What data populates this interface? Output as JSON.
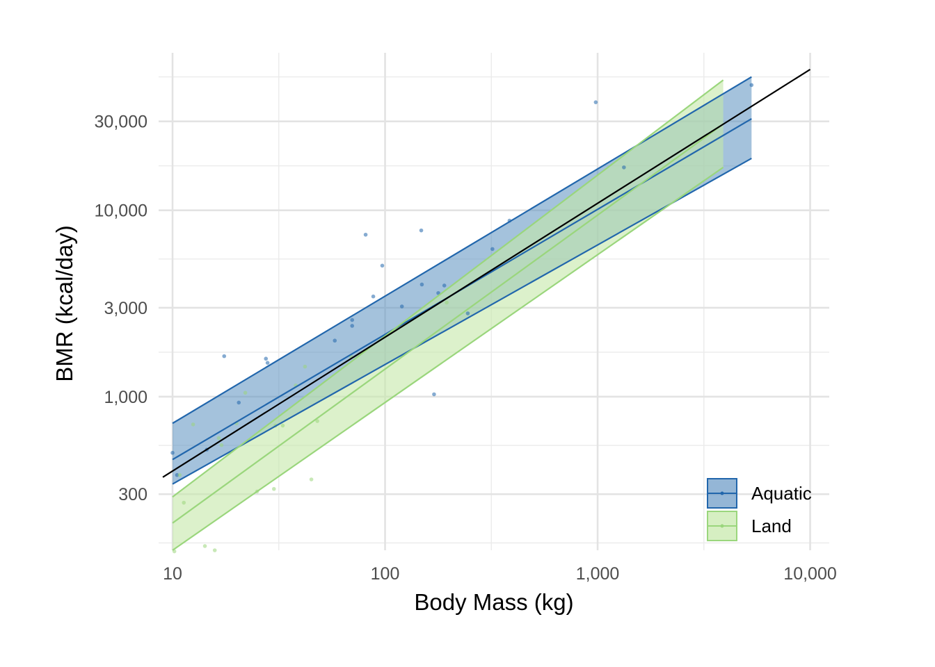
{
  "chart_data": {
    "type": "scatter",
    "xlabel": "Body Mass (kg)",
    "ylabel": "BMR (kcal/day)",
    "x_scale": "log10",
    "y_scale": "log10",
    "xlim": [
      8.6,
      12300
    ],
    "ylim": [
      150,
      70000
    ],
    "x_ticks": [
      10,
      100,
      1000,
      10000
    ],
    "x_tick_labels": [
      "10",
      "100",
      "1,000",
      "10,000"
    ],
    "y_ticks": [
      300,
      1000,
      3000,
      10000,
      30000
    ],
    "y_tick_labels": [
      "300",
      "1,000",
      "3,000",
      "10,000",
      "30,000"
    ],
    "grid": true,
    "legend_position": "bottom-right",
    "colors": {
      "aquatic": "#2166ac",
      "aquatic_fill": "#5a8fc0",
      "land": "#9ad67c",
      "land_fill": "#c5e8a8",
      "overall_line": "#000000"
    },
    "legend": [
      {
        "label": "Aquatic",
        "series": "aquatic"
      },
      {
        "label": "Land",
        "series": "land"
      }
    ],
    "series": [
      {
        "name": "Aquatic",
        "key": "aquatic",
        "fit": {
          "x0": 10,
          "x1": 5300,
          "y0": 460,
          "y1": 31000
        },
        "band_upper": {
          "x0": 10,
          "x1": 5300,
          "y0": 720,
          "y1": 52000
        },
        "band_lower": {
          "x0": 10,
          "x1": 5300,
          "y0": 340,
          "y1": 19000
        },
        "points": [
          [
            10,
            500
          ],
          [
            10.5,
            380
          ],
          [
            14.5,
            520
          ],
          [
            17.5,
            1650
          ],
          [
            20.5,
            930
          ],
          [
            27.5,
            1600
          ],
          [
            28,
            1520
          ],
          [
            58,
            2000
          ],
          [
            70,
            2400
          ],
          [
            70,
            2580
          ],
          [
            81,
            7400
          ],
          [
            88,
            3450
          ],
          [
            97,
            5050
          ],
          [
            120,
            3050
          ],
          [
            148,
            7800
          ],
          [
            149,
            4000
          ],
          [
            170,
            1030
          ],
          [
            178,
            3600
          ],
          [
            190,
            3950
          ],
          [
            245,
            2800
          ],
          [
            320,
            6200
          ],
          [
            385,
            8800
          ],
          [
            980,
            38000
          ],
          [
            1330,
            17000
          ],
          [
            5300,
            47000
          ]
        ]
      },
      {
        "name": "Land",
        "key": "land",
        "fit": {
          "x0": 10,
          "x1": 3900,
          "y0": 210,
          "y1": 29000
        },
        "band_upper": {
          "x0": 10,
          "x1": 3900,
          "y0": 290,
          "y1": 50000
        },
        "band_lower": {
          "x0": 10,
          "x1": 3900,
          "y0": 150,
          "y1": 17000
        },
        "points": [
          [
            10.2,
            148
          ],
          [
            10.8,
            380
          ],
          [
            11.3,
            270
          ],
          [
            12.5,
            710
          ],
          [
            14.2,
            158
          ],
          [
            15.8,
            150
          ],
          [
            16.5,
            600
          ],
          [
            17,
            550
          ],
          [
            20,
            720
          ],
          [
            22,
            1050
          ],
          [
            25,
            310
          ],
          [
            30,
            320
          ],
          [
            30.5,
            700
          ],
          [
            33,
            700
          ],
          [
            38,
            1150
          ],
          [
            42,
            1450
          ],
          [
            45,
            360
          ],
          [
            48,
            740
          ],
          [
            69,
            1650
          ],
          [
            195,
            3200
          ]
        ]
      }
    ],
    "overall_fit": {
      "x0": 9.0,
      "x1": 10000,
      "y0": 370,
      "y1": 57000
    }
  }
}
